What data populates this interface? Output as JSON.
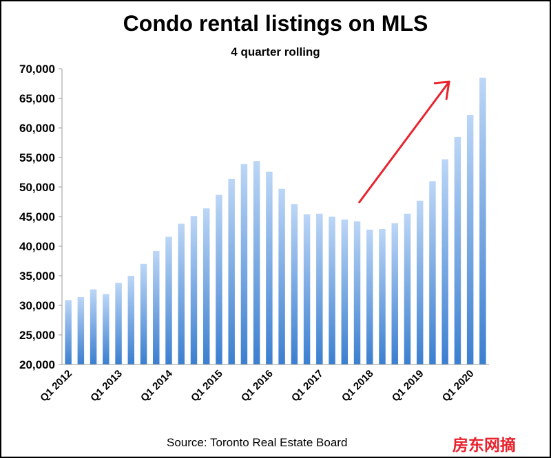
{
  "chart_data": {
    "type": "bar",
    "title": "Condo rental listings on MLS",
    "subtitle": "4 quarter rolling",
    "source": "Source: Toronto Real Estate Board",
    "watermark": "房东网摘",
    "ylim": [
      20000,
      70000
    ],
    "yticks": [
      20000,
      25000,
      30000,
      35000,
      40000,
      45000,
      50000,
      55000,
      60000,
      65000,
      70000
    ],
    "ytick_labels": [
      "20,000",
      "25,000",
      "30,000",
      "35,000",
      "40,000",
      "45,000",
      "50,000",
      "55,000",
      "60,000",
      "65,000",
      "70,000"
    ],
    "categories": [
      "Q1 2012",
      "Q2 2012",
      "Q3 2012",
      "Q4 2012",
      "Q1 2013",
      "Q2 2013",
      "Q3 2013",
      "Q4 2013",
      "Q1 2014",
      "Q2 2014",
      "Q3 2014",
      "Q4 2014",
      "Q1 2015",
      "Q2 2015",
      "Q3 2015",
      "Q4 2015",
      "Q1 2016",
      "Q2 2016",
      "Q3 2016",
      "Q4 2016",
      "Q1 2017",
      "Q2 2017",
      "Q3 2017",
      "Q4 2017",
      "Q1 2018",
      "Q2 2018",
      "Q3 2018",
      "Q4 2018",
      "Q1 2019",
      "Q2 2019",
      "Q3 2019",
      "Q4 2019",
      "Q1 2020",
      "Q2 2020"
    ],
    "xtick_labels": [
      "Q1 2012",
      "Q1 2013",
      "Q1 2014",
      "Q1 2015",
      "Q1 2016",
      "Q1 2017",
      "Q1 2018",
      "Q1 2019",
      "Q1 2020"
    ],
    "values": [
      30900,
      31400,
      32700,
      31900,
      33800,
      35000,
      37000,
      39200,
      41600,
      43800,
      45100,
      46400,
      48700,
      51400,
      53900,
      54400,
      52600,
      49700,
      47100,
      45400,
      45500,
      45000,
      44500,
      44200,
      42800,
      42900,
      43900,
      45500,
      47700,
      51000,
      54700,
      58500,
      62200,
      68500
    ],
    "bar_color_top": "#bcd6f6",
    "bar_color_bottom": "#3b7fd0",
    "annotation": "red upward arrow",
    "arrow_color": "#e8232e",
    "grid": false
  }
}
